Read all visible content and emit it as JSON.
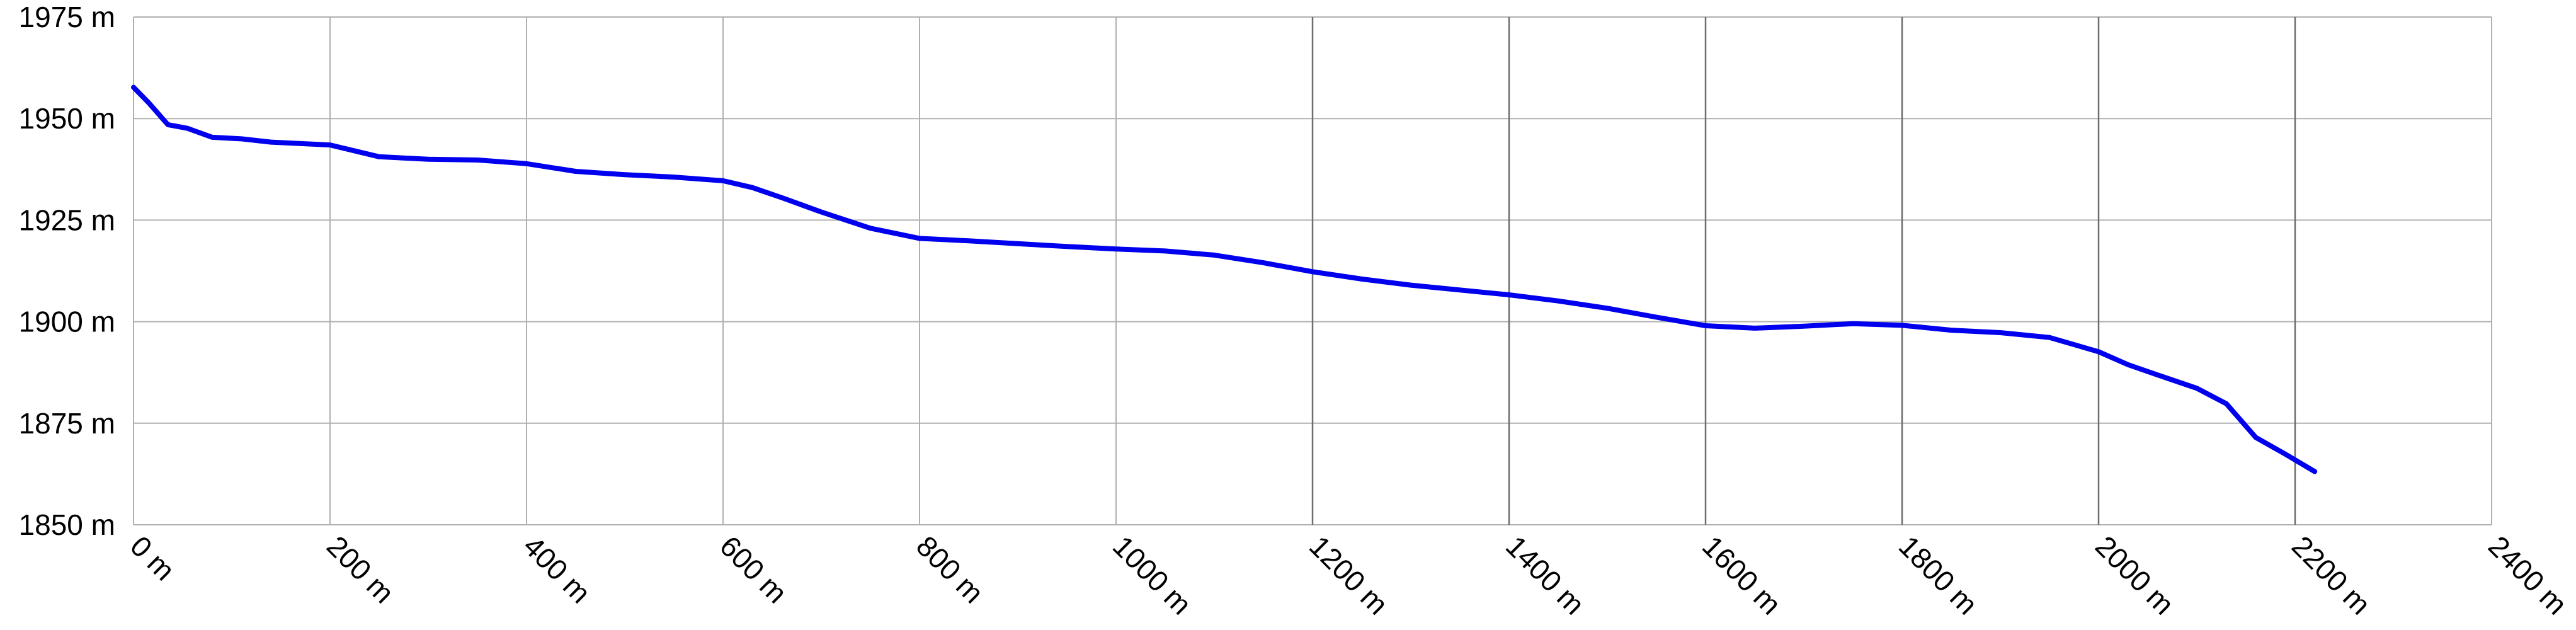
{
  "chart_data": {
    "type": "line",
    "title": "",
    "xlabel": "",
    "ylabel": "",
    "xlim": [
      0,
      2400
    ],
    "ylim": [
      1850,
      1975
    ],
    "grid": true,
    "legend": "none",
    "x_ticks": [
      0,
      200,
      400,
      600,
      800,
      1000,
      1200,
      1400,
      1600,
      1800,
      2000,
      2200,
      2400
    ],
    "y_ticks": [
      1850,
      1875,
      1900,
      1925,
      1950,
      1975
    ],
    "x_tick_labels": [
      "0 m",
      "200 m",
      "400 m",
      "600 m",
      "800 m",
      "1000 m",
      "1200 m",
      "1400 m",
      "1600 m",
      "1800 m",
      "2000 m",
      "2200 m",
      "2400 m"
    ],
    "y_tick_labels": [
      "1850 m",
      "1875 m",
      "1900 m",
      "1925 m",
      "1950 m",
      "1975 m"
    ],
    "series": [
      {
        "color": "#0000ee",
        "points": [
          [
            0,
            1957.7
          ],
          [
            15,
            1954.0
          ],
          [
            35,
            1948.5
          ],
          [
            55,
            1947.6
          ],
          [
            80,
            1945.4
          ],
          [
            110,
            1945.0
          ],
          [
            140,
            1944.2
          ],
          [
            200,
            1943.5
          ],
          [
            250,
            1940.6
          ],
          [
            300,
            1940.0
          ],
          [
            350,
            1939.8
          ],
          [
            400,
            1938.9
          ],
          [
            450,
            1937.0
          ],
          [
            500,
            1936.2
          ],
          [
            550,
            1935.6
          ],
          [
            600,
            1934.7
          ],
          [
            630,
            1933.0
          ],
          [
            660,
            1930.5
          ],
          [
            700,
            1927.0
          ],
          [
            750,
            1923.0
          ],
          [
            800,
            1920.5
          ],
          [
            850,
            1919.9
          ],
          [
            900,
            1919.2
          ],
          [
            950,
            1918.5
          ],
          [
            1000,
            1917.9
          ],
          [
            1050,
            1917.4
          ],
          [
            1100,
            1916.4
          ],
          [
            1150,
            1914.5
          ],
          [
            1200,
            1912.3
          ],
          [
            1250,
            1910.5
          ],
          [
            1300,
            1909.0
          ],
          [
            1350,
            1907.8
          ],
          [
            1400,
            1906.6
          ],
          [
            1450,
            1905.1
          ],
          [
            1500,
            1903.3
          ],
          [
            1550,
            1901.1
          ],
          [
            1600,
            1899.0
          ],
          [
            1650,
            1898.4
          ],
          [
            1700,
            1898.9
          ],
          [
            1750,
            1899.5
          ],
          [
            1800,
            1899.1
          ],
          [
            1850,
            1897.9
          ],
          [
            1900,
            1897.3
          ],
          [
            1950,
            1896.1
          ],
          [
            2000,
            1892.6
          ],
          [
            2030,
            1889.4
          ],
          [
            2060,
            1886.9
          ],
          [
            2100,
            1883.6
          ],
          [
            2130,
            1879.8
          ],
          [
            2160,
            1871.5
          ],
          [
            2190,
            1867.4
          ],
          [
            2220,
            1863.1
          ]
        ]
      }
    ]
  }
}
